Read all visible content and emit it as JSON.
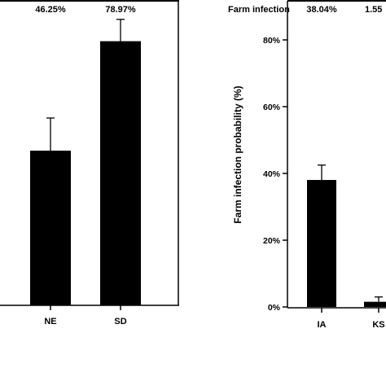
{
  "colors": {
    "bar": "#000000",
    "axis": "#000000",
    "background": "#ffffff"
  },
  "chart_data": [
    {
      "type": "bar",
      "title": "",
      "xlabel": "",
      "ylabel": "",
      "ylim": [
        0,
        100
      ],
      "categories": [
        "NE",
        "SD"
      ],
      "values": [
        46.25,
        78.97
      ],
      "error_upper": [
        56.0,
        85.5
      ],
      "annotations": [
        "46.25%",
        "78.97%"
      ]
    },
    {
      "type": "bar",
      "title": "",
      "header_label": "Farm infection",
      "xlabel": "",
      "ylabel": "Farm infection probability (%)",
      "ylim": [
        0,
        85
      ],
      "yticks": [
        "0%",
        "20%",
        "40%",
        "60%",
        "80%"
      ],
      "ytick_values": [
        0,
        20,
        40,
        60,
        80
      ],
      "categories": [
        "IA",
        "KS"
      ],
      "values": [
        38.04,
        1.55
      ],
      "error_upper": [
        42.5,
        3.0
      ],
      "annotations": [
        "38.04%",
        "1.55"
      ]
    }
  ]
}
